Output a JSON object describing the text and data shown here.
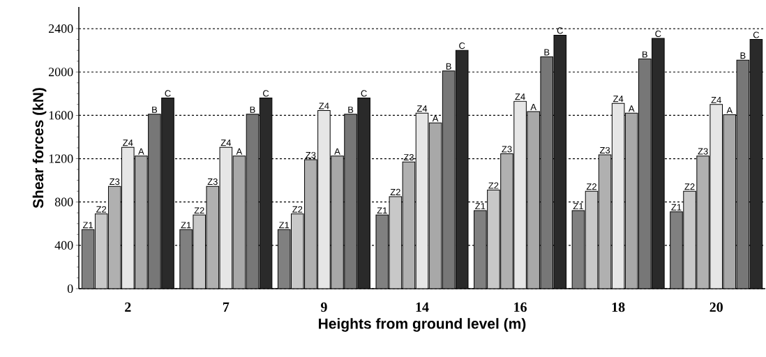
{
  "chart_data": {
    "type": "bar",
    "xlabel": "Heights from ground level (m)",
    "ylabel": "Shear forces (kN)",
    "categories": [
      "2",
      "7",
      "9",
      "14",
      "16",
      "18",
      "20"
    ],
    "series": [
      {
        "name": "Z1",
        "color": "#808080",
        "values": [
          545,
          545,
          545,
          680,
          720,
          720,
          710
        ]
      },
      {
        "name": "Z2",
        "color": "#c8c8c8",
        "values": [
          690,
          680,
          690,
          850,
          910,
          900,
          900
        ]
      },
      {
        "name": "Z3",
        "color": "#b0b0b0",
        "values": [
          945,
          945,
          1190,
          1170,
          1245,
          1235,
          1225
        ]
      },
      {
        "name": "Z4",
        "color": "#e6e6e6",
        "values": [
          1305,
          1305,
          1645,
          1620,
          1730,
          1710,
          1700
        ]
      },
      {
        "name": "A",
        "color": "#a8a8a8",
        "values": [
          1225,
          1225,
          1225,
          1530,
          1635,
          1620,
          1605
        ]
      },
      {
        "name": "B",
        "color": "#777777",
        "values": [
          1610,
          1610,
          1610,
          2010,
          2140,
          2120,
          2110
        ]
      },
      {
        "name": "C",
        "color": "#2a2a2a",
        "values": [
          1760,
          1760,
          1760,
          2200,
          2340,
          2310,
          2300
        ]
      }
    ],
    "ylim": [
      0,
      2600
    ],
    "yticks": [
      0,
      400,
      800,
      1200,
      1600,
      2000,
      2400
    ],
    "grid": "y"
  }
}
